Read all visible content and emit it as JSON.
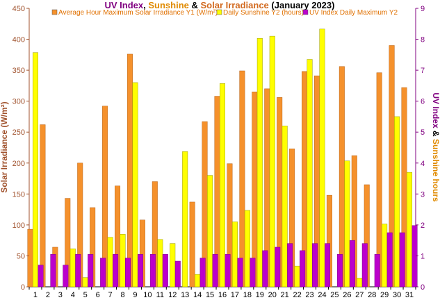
{
  "chart_data": {
    "type": "bar",
    "title_parts": [
      {
        "text": "UV Index",
        "color": "#800080"
      },
      {
        "text": ", ",
        "color": "#000000"
      },
      {
        "text": "Sunshine",
        "color": "#e08a00"
      },
      {
        "text": " & ",
        "color": "#000000"
      },
      {
        "text": "Solar Irradiance",
        "color": "#d2691e"
      },
      {
        "text": " (January 2023)",
        "color": "#000000"
      }
    ],
    "ylabel_left": "Solar Irradiance (W/m²)",
    "ylabel_right_parts": [
      {
        "text": "UV Index",
        "color": "#800080"
      },
      {
        "text": " & ",
        "color": "#000000"
      },
      {
        "text": "Sunshine hours",
        "color": "#e08a00"
      }
    ],
    "y1_range": [
      0,
      450
    ],
    "y1_ticks": [
      "0",
      "50",
      "100",
      "150",
      "200",
      "250",
      "300",
      "350",
      "400",
      "450"
    ],
    "y2_range": [
      0,
      9
    ],
    "y2_ticks": [
      "0",
      "1",
      "2",
      "3",
      "4",
      "5",
      "6",
      "7",
      "8",
      "9"
    ],
    "categories": [
      "1",
      "2",
      "3",
      "4",
      "5",
      "6",
      "7",
      "8",
      "9",
      "10",
      "11",
      "12",
      "13",
      "14",
      "15",
      "16",
      "17",
      "18",
      "19",
      "20",
      "21",
      "22",
      "23",
      "24",
      "25",
      "26",
      "27",
      "28",
      "29",
      "30",
      "31"
    ],
    "colors": {
      "irradiance": "#f5912c",
      "sunshine": "#ffff00",
      "uv": "#bb00cc",
      "left_axis": "#a0522d",
      "right_axis": "#800080"
    },
    "series": [
      {
        "name": "Average Hour Maximum Solar Irradiance Y1 (W/m²)",
        "axis": "y1",
        "values": [
          93,
          262,
          64,
          143,
          200,
          128,
          292,
          163,
          376,
          108,
          170,
          0,
          0,
          137,
          267,
          308,
          199,
          349,
          315,
          320,
          306,
          223,
          348,
          341,
          148,
          356,
          212,
          165,
          346,
          390,
          322
        ]
      },
      {
        "name": "Daily Sunshine Y2 (hours)",
        "axis": "y2",
        "values": [
          7.57,
          0,
          0,
          1.23,
          0.3,
          0,
          1.6,
          1.7,
          6.6,
          0,
          1.53,
          1.4,
          4.37,
          0.4,
          3.6,
          6.57,
          2.1,
          2.47,
          8.03,
          8.1,
          5.2,
          0.67,
          7.35,
          8.33,
          0,
          4.07,
          0.28,
          0,
          2.03,
          5.5,
          3.7
        ]
      },
      {
        "name": "UV Index Daily Maximum Y2",
        "axis": "y2",
        "values": [
          0.7,
          1.05,
          0.7,
          1.05,
          1.05,
          0.93,
          1.05,
          0.93,
          1.05,
          1.05,
          1.05,
          0.83,
          0,
          0.93,
          1.05,
          1.05,
          0.93,
          0.93,
          1.17,
          1.28,
          1.4,
          1.17,
          1.4,
          1.4,
          1.05,
          1.5,
          1.4,
          1.05,
          1.75,
          1.75,
          1.98
        ]
      }
    ]
  }
}
